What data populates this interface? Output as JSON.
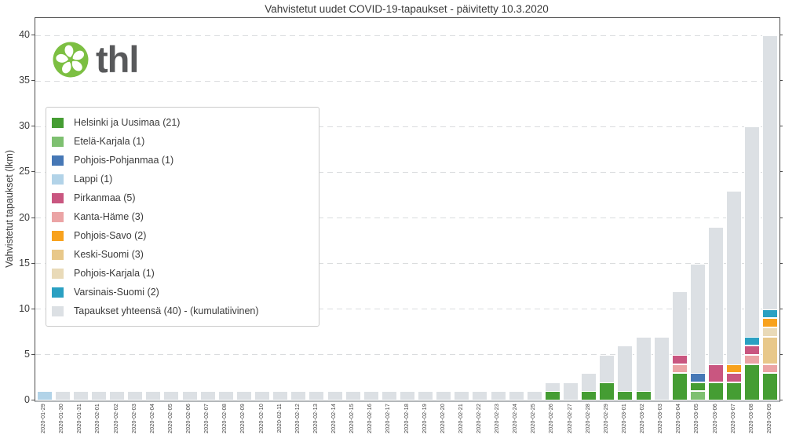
{
  "logo": {
    "brand": "thl",
    "circle_color": "#7cbf42",
    "flower_color": "#ffffff",
    "text_color": "#58595b"
  },
  "chart_data": {
    "type": "bar",
    "title": "Vahvistetut uudet COVID-19-tapaukset - päivitetty 10.3.2020",
    "ylabel": "Vahvistetut tapaukset (lkm)",
    "xlabel": "",
    "ylim": [
      0,
      41.9
    ],
    "yticks": [
      0,
      5,
      10,
      15,
      20,
      25,
      30,
      35,
      40
    ],
    "grid": "horizontal dashed",
    "legend_position": "upper left",
    "description": "Stacked daily new COVID-19 cases by region; light gray bars show cumulative total",
    "regions": [
      {
        "key": "helsinki",
        "label": "Helsinki ja Uusimaa (21)",
        "color": "#459d33"
      },
      {
        "key": "etela_karjala",
        "label": "Etelä-Karjala (1)",
        "color": "#7ec071"
      },
      {
        "key": "pohjois_pohjanmaa",
        "label": "Pohjois-Pohjanmaa (1)",
        "color": "#4678b6"
      },
      {
        "key": "lappi",
        "label": "Lappi (1)",
        "color": "#b2d3e8"
      },
      {
        "key": "pirkanmaa",
        "label": "Pirkanmaa (5)",
        "color": "#c95680"
      },
      {
        "key": "kanta_hame",
        "label": "Kanta-Häme (3)",
        "color": "#eba4a5"
      },
      {
        "key": "pohjois_savo",
        "label": "Pohjois-Savo (2)",
        "color": "#f8a21d"
      },
      {
        "key": "keski_suomi",
        "label": "Keski-Suomi (3)",
        "color": "#e8c88a"
      },
      {
        "key": "pohjois_karjala",
        "label": "Pohjois-Karjala (1)",
        "color": "#e9dab8"
      },
      {
        "key": "varsinais_suomi",
        "label": "Varsinais-Suomi (2)",
        "color": "#2aa0c2"
      }
    ],
    "cumulative_series": {
      "key": "total",
      "label": "Tapaukset yhteensä (40) - (kumulatiivinen)",
      "color": "#dce0e4"
    },
    "days": [
      {
        "date": "2020-01-29",
        "cumulative": 1,
        "new": [
          [
            "lappi",
            1
          ]
        ]
      },
      {
        "date": "2020-01-30",
        "cumulative": 1,
        "new": []
      },
      {
        "date": "2020-01-31",
        "cumulative": 1,
        "new": []
      },
      {
        "date": "2020-02-01",
        "cumulative": 1,
        "new": []
      },
      {
        "date": "2020-02-02",
        "cumulative": 1,
        "new": []
      },
      {
        "date": "2020-02-03",
        "cumulative": 1,
        "new": []
      },
      {
        "date": "2020-02-04",
        "cumulative": 1,
        "new": []
      },
      {
        "date": "2020-02-05",
        "cumulative": 1,
        "new": []
      },
      {
        "date": "2020-02-06",
        "cumulative": 1,
        "new": []
      },
      {
        "date": "2020-02-07",
        "cumulative": 1,
        "new": []
      },
      {
        "date": "2020-02-08",
        "cumulative": 1,
        "new": []
      },
      {
        "date": "2020-02-09",
        "cumulative": 1,
        "new": []
      },
      {
        "date": "2020-02-10",
        "cumulative": 1,
        "new": []
      },
      {
        "date": "2020-02-11",
        "cumulative": 1,
        "new": []
      },
      {
        "date": "2020-02-12",
        "cumulative": 1,
        "new": []
      },
      {
        "date": "2020-02-13",
        "cumulative": 1,
        "new": []
      },
      {
        "date": "2020-02-14",
        "cumulative": 1,
        "new": []
      },
      {
        "date": "2020-02-15",
        "cumulative": 1,
        "new": []
      },
      {
        "date": "2020-02-16",
        "cumulative": 1,
        "new": []
      },
      {
        "date": "2020-02-17",
        "cumulative": 1,
        "new": []
      },
      {
        "date": "2020-02-18",
        "cumulative": 1,
        "new": []
      },
      {
        "date": "2020-02-19",
        "cumulative": 1,
        "new": []
      },
      {
        "date": "2020-02-20",
        "cumulative": 1,
        "new": []
      },
      {
        "date": "2020-02-21",
        "cumulative": 1,
        "new": []
      },
      {
        "date": "2020-02-22",
        "cumulative": 1,
        "new": []
      },
      {
        "date": "2020-02-23",
        "cumulative": 1,
        "new": []
      },
      {
        "date": "2020-02-24",
        "cumulative": 1,
        "new": []
      },
      {
        "date": "2020-02-25",
        "cumulative": 1,
        "new": []
      },
      {
        "date": "2020-02-26",
        "cumulative": 2,
        "new": [
          [
            "helsinki",
            1
          ]
        ]
      },
      {
        "date": "2020-02-27",
        "cumulative": 2,
        "new": []
      },
      {
        "date": "2020-02-28",
        "cumulative": 3,
        "new": [
          [
            "helsinki",
            1
          ]
        ]
      },
      {
        "date": "2020-02-29",
        "cumulative": 5,
        "new": [
          [
            "helsinki",
            2
          ]
        ]
      },
      {
        "date": "2020-03-01",
        "cumulative": 6,
        "new": [
          [
            "helsinki",
            1
          ]
        ]
      },
      {
        "date": "2020-03-02",
        "cumulative": 7,
        "new": [
          [
            "helsinki",
            1
          ]
        ]
      },
      {
        "date": "2020-03-03",
        "cumulative": 7,
        "new": []
      },
      {
        "date": "2020-03-04",
        "cumulative": 12,
        "new": [
          [
            "helsinki",
            3
          ],
          [
            "kanta_hame",
            1
          ],
          [
            "pirkanmaa",
            1
          ]
        ]
      },
      {
        "date": "2020-03-05",
        "cumulative": 15,
        "new": [
          [
            "etela_karjala",
            1
          ],
          [
            "helsinki",
            1
          ],
          [
            "pohjois_pohjanmaa",
            1
          ]
        ]
      },
      {
        "date": "2020-03-06",
        "cumulative": 19,
        "new": [
          [
            "helsinki",
            2
          ],
          [
            "pirkanmaa",
            2
          ]
        ]
      },
      {
        "date": "2020-03-07",
        "cumulative": 23,
        "new": [
          [
            "helsinki",
            2
          ],
          [
            "pirkanmaa",
            1
          ],
          [
            "pohjois_savo",
            1
          ]
        ]
      },
      {
        "date": "2020-03-08",
        "cumulative": 30,
        "new": [
          [
            "helsinki",
            4
          ],
          [
            "kanta_hame",
            1
          ],
          [
            "pirkanmaa",
            1
          ],
          [
            "varsinais_suomi",
            1
          ]
        ]
      },
      {
        "date": "2020-03-09",
        "cumulative": 40,
        "new": [
          [
            "helsinki",
            3
          ],
          [
            "kanta_hame",
            1
          ],
          [
            "keski_suomi",
            3
          ],
          [
            "pohjois_karjala",
            1
          ],
          [
            "pohjois_savo",
            1
          ],
          [
            "varsinais_suomi",
            1
          ]
        ]
      }
    ]
  }
}
